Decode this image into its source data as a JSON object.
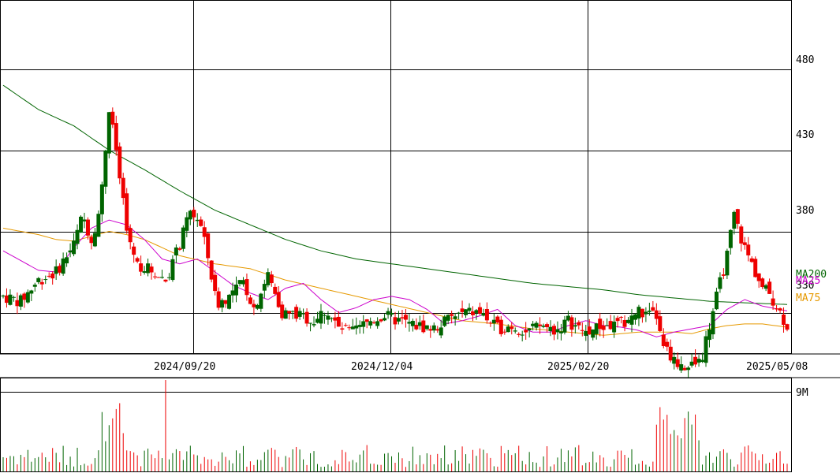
{
  "chart_data": {
    "type": "candlestick",
    "price_axis": {
      "ylim": [
        305,
        522
      ],
      "ticks": [
        480,
        430,
        380,
        330
      ]
    },
    "date_ticks": [
      "2024/09/20",
      "2024/12/04",
      "2025/02/20",
      "2025/05/08"
    ],
    "legend": [
      {
        "name": "MA200",
        "color": "#006400",
        "value": 337
      },
      {
        "name": "MA25",
        "color": "#cc00cc",
        "value": 334
      },
      {
        "name": "MA75",
        "color": "#e69900",
        "value": 322
      }
    ],
    "colors": {
      "up": "#006400",
      "down": "#ee0000",
      "grid": "#000000"
    },
    "candle_anchors": [
      [
        0,
        340
      ],
      [
        10,
        337
      ],
      [
        20,
        350
      ],
      [
        30,
        355
      ],
      [
        40,
        372
      ],
      [
        45,
        390
      ],
      [
        50,
        375
      ],
      [
        55,
        395
      ],
      [
        60,
        455
      ],
      [
        64,
        430
      ],
      [
        70,
        380
      ],
      [
        76,
        360
      ],
      [
        84,
        356
      ],
      [
        92,
        350
      ],
      [
        100,
        372
      ],
      [
        106,
        392
      ],
      [
        111,
        387
      ],
      [
        116,
        364
      ],
      [
        121,
        335
      ],
      [
        128,
        340
      ],
      [
        136,
        349
      ],
      [
        142,
        333
      ],
      [
        150,
        353
      ],
      [
        158,
        330
      ],
      [
        168,
        328
      ],
      [
        176,
        325
      ],
      [
        183,
        332
      ],
      [
        190,
        320
      ],
      [
        198,
        318
      ],
      [
        208,
        325
      ],
      [
        216,
        328
      ],
      [
        224,
        325
      ],
      [
        234,
        322
      ],
      [
        244,
        320
      ],
      [
        252,
        326
      ],
      [
        262,
        330
      ],
      [
        270,
        330
      ],
      [
        280,
        320
      ],
      [
        288,
        322
      ],
      [
        296,
        318
      ],
      [
        305,
        322
      ],
      [
        313,
        319
      ],
      [
        320,
        325
      ],
      [
        326,
        320
      ],
      [
        330,
        318
      ],
      [
        338,
        321
      ],
      [
        345,
        322
      ],
      [
        352,
        324
      ],
      [
        360,
        331
      ],
      [
        364,
        328
      ],
      [
        370,
        328
      ],
      [
        373,
        312
      ],
      [
        380,
        300
      ],
      [
        388,
        296
      ],
      [
        395,
        300
      ],
      [
        402,
        331
      ],
      [
        410,
        365
      ],
      [
        414,
        390
      ],
      [
        419,
        372
      ],
      [
        424,
        360
      ],
      [
        430,
        345
      ],
      [
        434,
        342
      ],
      [
        440,
        330
      ],
      [
        444,
        322
      ]
    ],
    "ma200_anchors": [
      [
        0,
        470
      ],
      [
        20,
        455
      ],
      [
        40,
        445
      ],
      [
        60,
        430
      ],
      [
        80,
        418
      ],
      [
        100,
        405
      ],
      [
        120,
        393
      ],
      [
        140,
        384
      ],
      [
        160,
        375
      ],
      [
        180,
        368
      ],
      [
        200,
        363
      ],
      [
        220,
        360
      ],
      [
        240,
        357
      ],
      [
        260,
        354
      ],
      [
        280,
        351
      ],
      [
        300,
        348
      ],
      [
        320,
        346
      ],
      [
        340,
        344
      ],
      [
        360,
        341
      ],
      [
        380,
        339
      ],
      [
        400,
        337
      ],
      [
        420,
        336
      ],
      [
        444,
        335
      ]
    ],
    "ma75_anchors": [
      [
        0,
        382
      ],
      [
        20,
        378
      ],
      [
        30,
        375
      ],
      [
        40,
        374
      ],
      [
        60,
        380
      ],
      [
        70,
        378
      ],
      [
        80,
        375
      ],
      [
        100,
        365
      ],
      [
        120,
        360
      ],
      [
        140,
        357
      ],
      [
        160,
        350
      ],
      [
        180,
        345
      ],
      [
        200,
        340
      ],
      [
        220,
        335
      ],
      [
        240,
        330
      ],
      [
        260,
        325
      ],
      [
        280,
        323
      ],
      [
        300,
        320
      ],
      [
        320,
        318
      ],
      [
        340,
        316
      ],
      [
        360,
        318
      ],
      [
        380,
        318
      ],
      [
        390,
        317
      ],
      [
        400,
        320
      ],
      [
        410,
        322
      ],
      [
        420,
        323
      ],
      [
        430,
        323
      ],
      [
        444,
        321
      ]
    ],
    "ma25_anchors": [
      [
        0,
        368
      ],
      [
        10,
        362
      ],
      [
        20,
        356
      ],
      [
        30,
        355
      ],
      [
        40,
        370
      ],
      [
        50,
        382
      ],
      [
        60,
        387
      ],
      [
        70,
        384
      ],
      [
        80,
        375
      ],
      [
        90,
        363
      ],
      [
        100,
        360
      ],
      [
        110,
        363
      ],
      [
        120,
        355
      ],
      [
        130,
        347
      ],
      [
        140,
        342
      ],
      [
        150,
        338
      ],
      [
        160,
        345
      ],
      [
        170,
        348
      ],
      [
        180,
        338
      ],
      [
        190,
        330
      ],
      [
        200,
        333
      ],
      [
        210,
        338
      ],
      [
        220,
        340
      ],
      [
        230,
        338
      ],
      [
        240,
        332
      ],
      [
        250,
        323
      ],
      [
        260,
        325
      ],
      [
        270,
        328
      ],
      [
        280,
        332
      ],
      [
        290,
        322
      ],
      [
        300,
        318
      ],
      [
        310,
        318
      ],
      [
        320,
        322
      ],
      [
        330,
        325
      ],
      [
        340,
        322
      ],
      [
        350,
        321
      ],
      [
        360,
        319
      ],
      [
        370,
        315
      ],
      [
        380,
        318
      ],
      [
        390,
        320
      ],
      [
        400,
        322
      ],
      [
        410,
        332
      ],
      [
        420,
        338
      ],
      [
        430,
        334
      ],
      [
        444,
        331
      ]
    ],
    "volume_axis": {
      "max_label": "9M",
      "label_value": 9
    }
  }
}
